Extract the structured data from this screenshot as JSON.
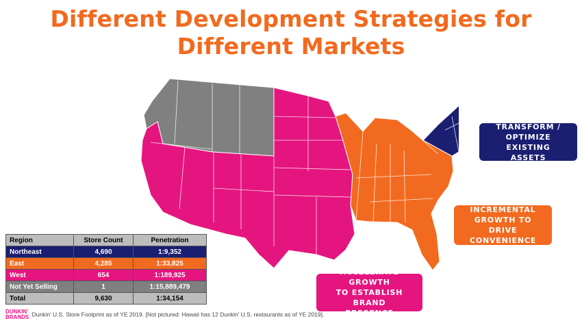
{
  "title_line1": "Different Development Strategies for",
  "title_line2": "Different Markets",
  "colors": {
    "northeast": "#1a1f71",
    "east": "#f26a1f",
    "west": "#e5157f",
    "not_yet_selling": "#808080"
  },
  "callouts": {
    "northeast": [
      "TRANSFORM /",
      "OPTIMIZE EXISTING",
      "ASSETS"
    ],
    "east": [
      "INCREMENTAL",
      "GROWTH TO DRIVE",
      "CONVENIENCE"
    ],
    "west": [
      "ACCELERATE GROWTH",
      "TO ESTABLISH BRAND",
      "PRESENCE"
    ]
  },
  "table": {
    "headers": [
      "Region",
      "Store Count",
      "Penetration"
    ],
    "rows": [
      {
        "region": "Northeast",
        "stores": "4,690",
        "penetration": "1:9,352"
      },
      {
        "region": "East",
        "stores": "4,285",
        "penetration": "1:33,825"
      },
      {
        "region": "West",
        "stores": "654",
        "penetration": "1:189,925"
      },
      {
        "region": "Not Yet Selling",
        "stores": "1",
        "penetration": "1:15,889,479"
      },
      {
        "region": "Total",
        "stores": "9,630",
        "penetration": "1:34,154"
      }
    ]
  },
  "logo": {
    "line1": "DUNKIN'",
    "line2": "BRANDS"
  },
  "footer": "Dunkin' U.S. Store Footprint as of YE 2019.  [Not pictured:  Hawaii has 12 Dunkin' U.S. restaurants as of YE 2019]."
}
